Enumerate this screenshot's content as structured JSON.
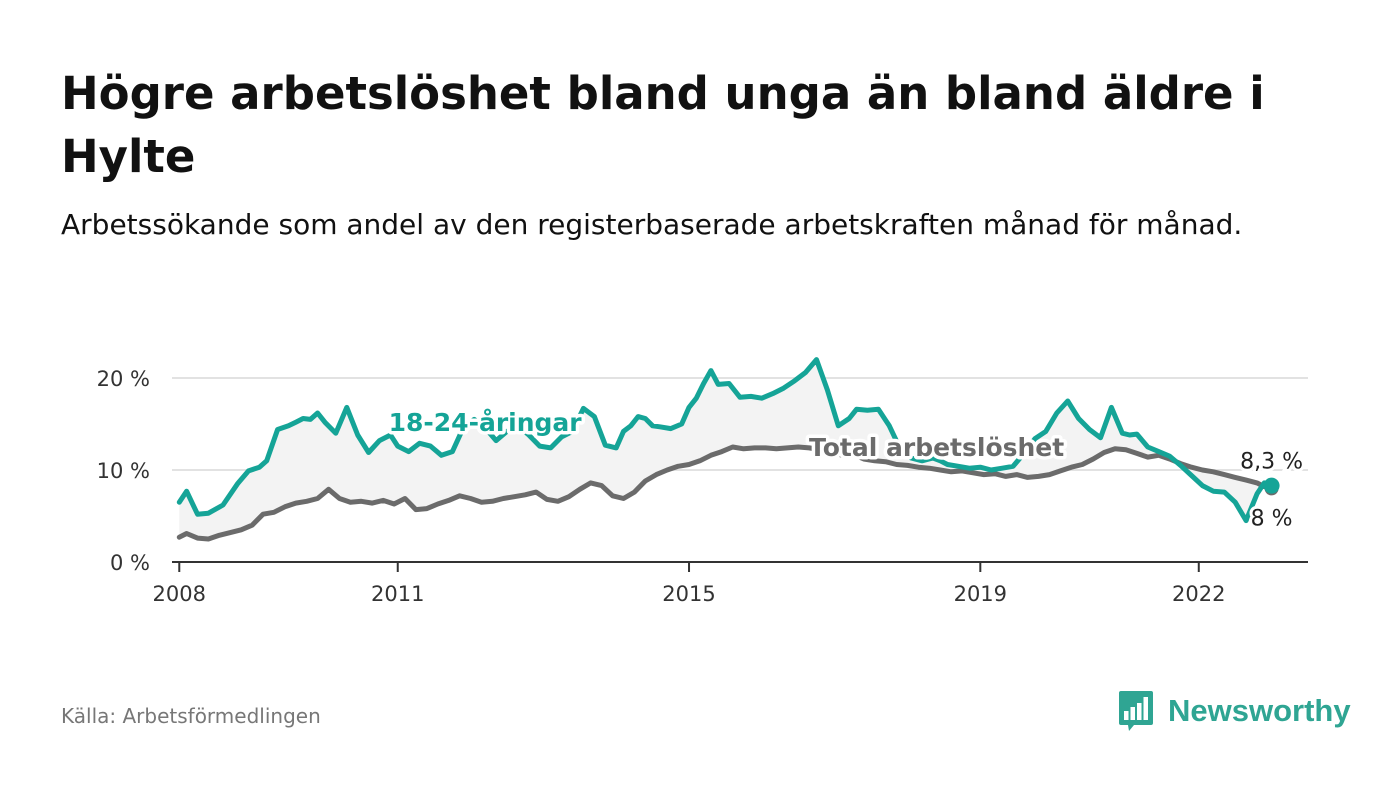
{
  "header": {
    "title": "Högre arbetslöshet bland unga än bland äldre i Hylte",
    "subtitle": "Arbetssökande som andel av den registerbaserade arbetskraften månad för månad."
  },
  "footer": {
    "source": "Källa: Arbetsförmedlingen",
    "logo_text": "Newsworthy"
  },
  "colors": {
    "youth": "#15a497",
    "total": "#6b6b6b",
    "band": "#f3f3f3",
    "grid": "#d9d9d9",
    "axis": "#333333",
    "logo": "#2fa593"
  },
  "chart_data": {
    "type": "line",
    "title": "Högre arbetslöshet bland unga än bland äldre i Hylte",
    "subtitle": "Arbetssökande som andel av den registerbaserade arbetskraften månad för månad.",
    "xlabel": "",
    "ylabel": "",
    "xlim": [
      2007.9,
      2023.5
    ],
    "ylim": [
      0,
      20
    ],
    "yticks": [
      0,
      10,
      20
    ],
    "ytick_labels": [
      "0 %",
      "10 %",
      "20 %"
    ],
    "xticks": [
      2008,
      2011,
      2015,
      2019,
      2022
    ],
    "xtick_labels": [
      "2008",
      "2011",
      "2015",
      "2019",
      "2022"
    ],
    "grid": true,
    "legend": "inline",
    "series": [
      {
        "name": "18-24-åringar",
        "label": "18-24-åringar",
        "end_label": "8,3 %",
        "x": [
          2008.0,
          2008.1,
          2008.25,
          2008.4,
          2008.6,
          2008.8,
          2008.95,
          2009.1,
          2009.2,
          2009.35,
          2009.5,
          2009.6,
          2009.7,
          2009.8,
          2009.9,
          2010.0,
          2010.15,
          2010.3,
          2010.45,
          2010.6,
          2010.75,
          2010.9,
          2011.0,
          2011.15,
          2011.3,
          2011.45,
          2011.6,
          2011.75,
          2011.9,
          2012.05,
          2012.2,
          2012.35,
          2012.5,
          2012.65,
          2012.8,
          2012.95,
          2013.1,
          2013.25,
          2013.4,
          2013.55,
          2013.7,
          2013.85,
          2014.0,
          2014.1,
          2014.2,
          2014.3,
          2014.4,
          2014.5,
          2014.6,
          2014.75,
          2014.9,
          2015.0,
          2015.1,
          2015.2,
          2015.3,
          2015.4,
          2015.55,
          2015.7,
          2015.85,
          2016.0,
          2016.15,
          2016.3,
          2016.45,
          2016.6,
          2016.75,
          2016.9,
          2017.05,
          2017.2,
          2017.3,
          2017.45,
          2017.6,
          2017.75,
          2017.9,
          2018.05,
          2018.2,
          2018.35,
          2018.45,
          2018.55,
          2018.7,
          2018.85,
          2019.0,
          2019.15,
          2019.3,
          2019.45,
          2019.6,
          2019.75,
          2019.9,
          2020.05,
          2020.2,
          2020.35,
          2020.5,
          2020.65,
          2020.8,
          2020.95,
          2021.05,
          2021.15,
          2021.3,
          2021.45,
          2021.6,
          2021.75,
          2021.9,
          2022.05,
          2022.2,
          2022.35,
          2022.5,
          2022.65,
          2022.8,
          2022.9,
          2023.0
        ],
        "values": [
          6.5,
          7.7,
          5.2,
          5.3,
          6.2,
          8.5,
          9.9,
          10.3,
          11.0,
          14.4,
          14.8,
          15.2,
          15.6,
          15.5,
          16.2,
          15.2,
          14.0,
          16.8,
          13.8,
          11.9,
          13.2,
          13.8,
          12.6,
          12.0,
          12.9,
          12.6,
          11.6,
          12.0,
          14.6,
          15.5,
          14.6,
          13.2,
          14.2,
          14.8,
          13.8,
          12.6,
          12.4,
          13.6,
          14.2,
          16.7,
          15.8,
          12.7,
          12.4,
          14.2,
          14.8,
          15.8,
          15.6,
          14.8,
          14.7,
          14.5,
          15.0,
          16.8,
          17.8,
          19.4,
          20.8,
          19.3,
          19.4,
          17.9,
          18.0,
          17.8,
          18.3,
          18.9,
          19.7,
          20.6,
          22.0,
          18.7,
          14.8,
          15.6,
          16.6,
          16.5,
          16.6,
          14.8,
          12.3,
          11.3,
          11.0,
          11.3,
          11.0,
          10.6,
          10.4,
          10.2,
          10.3,
          10.0,
          10.2,
          10.4,
          11.8,
          13.4,
          14.2,
          16.2,
          17.5,
          15.6,
          14.4,
          13.5,
          16.8,
          14.0,
          13.8,
          13.9,
          12.5,
          12.0,
          11.5,
          10.5,
          9.4,
          8.3,
          7.7,
          7.6,
          6.5,
          4.5,
          7.4,
          8.6,
          8.3
        ]
      },
      {
        "name": "Total arbetslöshet",
        "label": "Total arbetslöshet",
        "end_label": "8 %",
        "x": [
          2008.0,
          2008.1,
          2008.25,
          2008.4,
          2008.55,
          2008.7,
          2008.85,
          2009.0,
          2009.15,
          2009.3,
          2009.45,
          2009.6,
          2009.75,
          2009.9,
          2010.05,
          2010.2,
          2010.35,
          2010.5,
          2010.65,
          2010.8,
          2010.95,
          2011.1,
          2011.25,
          2011.4,
          2011.55,
          2011.7,
          2011.85,
          2012.0,
          2012.15,
          2012.3,
          2012.45,
          2012.6,
          2012.75,
          2012.9,
          2013.05,
          2013.2,
          2013.35,
          2013.5,
          2013.65,
          2013.8,
          2013.95,
          2014.1,
          2014.25,
          2014.4,
          2014.55,
          2014.7,
          2014.85,
          2015.0,
          2015.15,
          2015.3,
          2015.45,
          2015.6,
          2015.75,
          2015.9,
          2016.05,
          2016.2,
          2016.35,
          2016.5,
          2016.65,
          2016.8,
          2016.95,
          2017.1,
          2017.25,
          2017.4,
          2017.55,
          2017.7,
          2017.85,
          2018.0,
          2018.15,
          2018.3,
          2018.45,
          2018.6,
          2018.75,
          2018.9,
          2019.05,
          2019.2,
          2019.35,
          2019.5,
          2019.65,
          2019.8,
          2019.95,
          2020.1,
          2020.25,
          2020.4,
          2020.55,
          2020.7,
          2020.85,
          2021.0,
          2021.15,
          2021.3,
          2021.45,
          2021.6,
          2021.75,
          2021.9,
          2022.05,
          2022.2,
          2022.35,
          2022.5,
          2022.65,
          2022.8,
          2022.9,
          2023.0
        ],
        "values": [
          2.7,
          3.1,
          2.6,
          2.5,
          2.9,
          3.2,
          3.5,
          4.0,
          5.2,
          5.4,
          6.0,
          6.4,
          6.6,
          6.9,
          7.9,
          6.9,
          6.5,
          6.6,
          6.4,
          6.7,
          6.3,
          6.9,
          5.7,
          5.8,
          6.3,
          6.7,
          7.2,
          6.9,
          6.5,
          6.6,
          6.9,
          7.1,
          7.3,
          7.6,
          6.8,
          6.6,
          7.1,
          7.9,
          8.6,
          8.3,
          7.2,
          6.9,
          7.6,
          8.8,
          9.5,
          10.0,
          10.4,
          10.6,
          11.0,
          11.6,
          12.0,
          12.5,
          12.3,
          12.4,
          12.4,
          12.3,
          12.4,
          12.5,
          12.4,
          12.2,
          12.0,
          11.6,
          11.7,
          11.2,
          11.0,
          10.9,
          10.6,
          10.5,
          10.3,
          10.2,
          10.0,
          9.8,
          9.9,
          9.7,
          9.5,
          9.6,
          9.3,
          9.5,
          9.2,
          9.3,
          9.5,
          9.9,
          10.3,
          10.6,
          11.2,
          11.9,
          12.3,
          12.2,
          11.8,
          11.4,
          11.6,
          11.2,
          10.7,
          10.3,
          10.0,
          9.8,
          9.5,
          9.2,
          8.9,
          8.6,
          8.2,
          8.0
        ]
      }
    ],
    "annotations": [
      {
        "text": "18-24-åringar",
        "series": "18-24-åringar",
        "x": 2012.2,
        "y": 15.2
      },
      {
        "text": "Total arbetslöshet",
        "series": "Total arbetslöshet",
        "x": 2018.4,
        "y": 12.5
      }
    ]
  }
}
